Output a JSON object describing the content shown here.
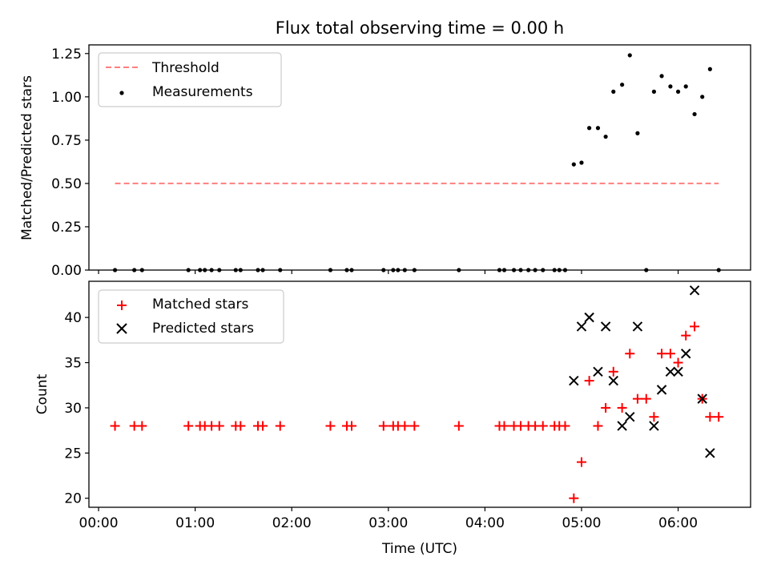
{
  "chart_data": [
    {
      "type": "scatter",
      "title": "Flux total observing time = 0.00 h",
      "xlabel": "",
      "ylabel": "Matched/Predicted stars",
      "xlim": [
        -0.1,
        6.75
      ],
      "ylim": [
        0,
        1.3
      ],
      "yticks": [
        0,
        0.25,
        0.5,
        0.75,
        1.0,
        1.25
      ],
      "ytick_labels": [
        "0.00",
        "0.25",
        "0.50",
        "0.75",
        "1.00",
        "1.25"
      ],
      "legend_position": "top-left",
      "series": [
        {
          "name": "Threshold",
          "kind": "dashed-line",
          "color": "#ff7f7f",
          "points": [
            [
              0.17,
              0.5
            ],
            [
              6.42,
              0.5
            ]
          ]
        },
        {
          "name": "Measurements",
          "kind": "dot",
          "color": "#000000",
          "points": [
            [
              0.17,
              0.0
            ],
            [
              0.37,
              0.0
            ],
            [
              0.45,
              0.0
            ],
            [
              0.93,
              0.0
            ],
            [
              1.05,
              0.0
            ],
            [
              1.1,
              0.0
            ],
            [
              1.17,
              0.0
            ],
            [
              1.25,
              0.0
            ],
            [
              1.42,
              0.0
            ],
            [
              1.47,
              0.0
            ],
            [
              1.65,
              0.0
            ],
            [
              1.7,
              0.0
            ],
            [
              1.88,
              0.0
            ],
            [
              2.4,
              0.0
            ],
            [
              2.57,
              0.0
            ],
            [
              2.62,
              0.0
            ],
            [
              2.95,
              0.0
            ],
            [
              3.05,
              0.0
            ],
            [
              3.1,
              0.0
            ],
            [
              3.17,
              0.0
            ],
            [
              3.27,
              0.0
            ],
            [
              3.73,
              0.0
            ],
            [
              4.15,
              0.0
            ],
            [
              4.2,
              0.0
            ],
            [
              4.3,
              0.0
            ],
            [
              4.37,
              0.0
            ],
            [
              4.45,
              0.0
            ],
            [
              4.52,
              0.0
            ],
            [
              4.6,
              0.0
            ],
            [
              4.72,
              0.0
            ],
            [
              4.77,
              0.0
            ],
            [
              4.83,
              0.0
            ],
            [
              4.92,
              0.61
            ],
            [
              5.0,
              0.62
            ],
            [
              5.08,
              0.82
            ],
            [
              5.17,
              0.82
            ],
            [
              5.25,
              0.77
            ],
            [
              5.33,
              1.03
            ],
            [
              5.42,
              1.07
            ],
            [
              5.5,
              1.24
            ],
            [
              5.58,
              0.79
            ],
            [
              5.67,
              0.0
            ],
            [
              5.75,
              1.03
            ],
            [
              5.83,
              1.12
            ],
            [
              5.92,
              1.06
            ],
            [
              6.0,
              1.03
            ],
            [
              6.08,
              1.06
            ],
            [
              6.17,
              0.9
            ],
            [
              6.25,
              1.0
            ],
            [
              6.33,
              1.16
            ],
            [
              6.42,
              0.0
            ]
          ]
        }
      ]
    },
    {
      "type": "scatter",
      "title": "",
      "xlabel": "Time (UTC)",
      "ylabel": "Count",
      "xlim": [
        -0.1,
        6.75
      ],
      "ylim": [
        19,
        44
      ],
      "yticks": [
        20,
        25,
        30,
        35,
        40
      ],
      "ytick_labels": [
        "20",
        "25",
        "30",
        "35",
        "40"
      ],
      "xticks": [
        0,
        1,
        2,
        3,
        4,
        5,
        6
      ],
      "xtick_labels": [
        "00:00",
        "01:00",
        "02:00",
        "03:00",
        "04:00",
        "05:00",
        "06:00"
      ],
      "legend_position": "top-left",
      "series": [
        {
          "name": "Matched stars",
          "kind": "plus",
          "color": "#ff0000",
          "points": [
            [
              0.17,
              28
            ],
            [
              0.37,
              28
            ],
            [
              0.45,
              28
            ],
            [
              0.93,
              28
            ],
            [
              1.05,
              28
            ],
            [
              1.1,
              28
            ],
            [
              1.17,
              28
            ],
            [
              1.25,
              28
            ],
            [
              1.42,
              28
            ],
            [
              1.47,
              28
            ],
            [
              1.65,
              28
            ],
            [
              1.7,
              28
            ],
            [
              1.88,
              28
            ],
            [
              2.4,
              28
            ],
            [
              2.57,
              28
            ],
            [
              2.62,
              28
            ],
            [
              2.95,
              28
            ],
            [
              3.05,
              28
            ],
            [
              3.1,
              28
            ],
            [
              3.17,
              28
            ],
            [
              3.27,
              28
            ],
            [
              3.73,
              28
            ],
            [
              4.15,
              28
            ],
            [
              4.2,
              28
            ],
            [
              4.3,
              28
            ],
            [
              4.37,
              28
            ],
            [
              4.45,
              28
            ],
            [
              4.52,
              28
            ],
            [
              4.6,
              28
            ],
            [
              4.72,
              28
            ],
            [
              4.77,
              28
            ],
            [
              4.83,
              28
            ],
            [
              4.92,
              20
            ],
            [
              5.0,
              24
            ],
            [
              5.08,
              33
            ],
            [
              5.17,
              28
            ],
            [
              5.25,
              30
            ],
            [
              5.33,
              34
            ],
            [
              5.42,
              30
            ],
            [
              5.5,
              36
            ],
            [
              5.58,
              31
            ],
            [
              5.67,
              31
            ],
            [
              5.75,
              29
            ],
            [
              5.83,
              36
            ],
            [
              5.92,
              36
            ],
            [
              6.0,
              35
            ],
            [
              6.08,
              38
            ],
            [
              6.17,
              39
            ],
            [
              6.25,
              31
            ],
            [
              6.33,
              29
            ],
            [
              6.42,
              29
            ]
          ]
        },
        {
          "name": "Predicted stars",
          "kind": "cross",
          "color": "#000000",
          "points": [
            [
              4.92,
              33
            ],
            [
              5.0,
              39
            ],
            [
              5.08,
              40
            ],
            [
              5.17,
              34
            ],
            [
              5.25,
              39
            ],
            [
              5.33,
              33
            ],
            [
              5.42,
              28
            ],
            [
              5.5,
              29
            ],
            [
              5.58,
              39
            ],
            [
              5.75,
              28
            ],
            [
              5.83,
              32
            ],
            [
              5.92,
              34
            ],
            [
              6.0,
              34
            ],
            [
              6.08,
              36
            ],
            [
              6.17,
              43
            ],
            [
              6.25,
              31
            ],
            [
              6.33,
              25
            ]
          ]
        }
      ]
    }
  ]
}
